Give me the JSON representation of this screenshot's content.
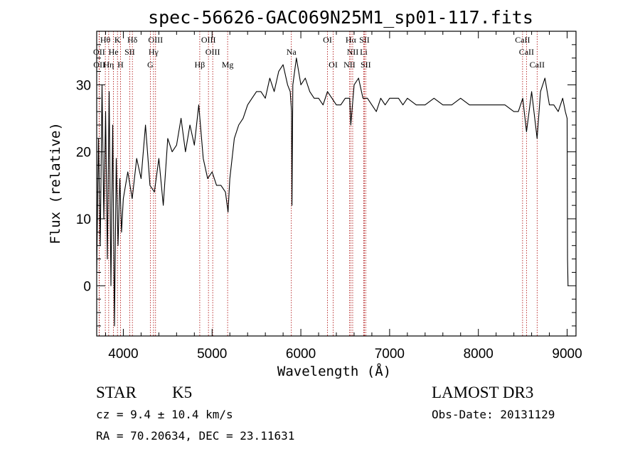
{
  "chart_data": {
    "type": "line",
    "title": "spec-56626-GAC069N25M1_sp01-117.fits",
    "xlabel": "Wavelength (Å)",
    "ylabel": "Flux (relative)",
    "xlim": [
      3700,
      9100
    ],
    "ylim": [
      -7.5,
      38
    ],
    "xticks": [
      4000,
      5000,
      6000,
      7000,
      8000,
      9000
    ],
    "yticks": [
      0,
      10,
      20,
      30
    ],
    "series": [
      {
        "x": [
          3700,
          3720,
          3740,
          3760,
          3780,
          3800,
          3820,
          3840,
          3860,
          3880,
          3900,
          3920,
          3940,
          3960,
          3980,
          4000,
          4050,
          4100,
          4150,
          4200,
          4250,
          4300,
          4350,
          4400,
          4450,
          4500,
          4550,
          4600,
          4650,
          4700,
          4750,
          4800,
          4850,
          4900,
          4950,
          5000,
          5050,
          5100,
          5150,
          5180,
          5200,
          5250,
          5300,
          5350,
          5400,
          5450,
          5500,
          5550,
          5600,
          5650,
          5700,
          5750,
          5800,
          5850,
          5880,
          5895,
          5900,
          5910,
          5950,
          6000,
          6050,
          6100,
          6150,
          6200,
          6250,
          6300,
          6350,
          6400,
          6450,
          6500,
          6550,
          6563,
          6600,
          6650,
          6700,
          6750,
          6800,
          6850,
          6900,
          6950,
          7000,
          7050,
          7100,
          7150,
          7200,
          7300,
          7400,
          7500,
          7600,
          7700,
          7800,
          7900,
          8000,
          8100,
          8200,
          8300,
          8400,
          8450,
          8500,
          8542,
          8600,
          8662,
          8700,
          8750,
          8800,
          8850,
          8900,
          8950,
          8980,
          9000,
          9005,
          9010
        ],
        "y": [
          2,
          22,
          6,
          30,
          10,
          26,
          4,
          29,
          0,
          24,
          -6,
          19,
          6,
          16,
          8,
          13,
          17,
          13,
          19,
          16,
          24,
          15,
          14,
          19,
          12,
          22,
          20,
          21,
          25,
          20,
          24,
          21,
          27,
          19,
          16,
          17,
          15,
          15,
          14,
          11,
          16,
          22,
          24,
          25,
          27,
          28,
          29,
          29,
          28,
          31,
          29,
          32,
          33,
          30,
          29,
          26,
          12,
          30,
          34,
          30,
          31,
          29,
          28,
          28,
          27,
          29,
          28,
          27,
          27,
          28,
          28,
          24,
          30,
          31,
          28,
          28,
          27,
          26,
          28,
          27,
          28,
          28,
          28,
          27,
          28,
          27,
          27,
          28,
          27,
          27,
          28,
          27,
          27,
          27,
          27,
          27,
          26,
          26,
          28,
          23,
          29,
          22,
          29,
          31,
          27,
          27,
          26,
          28,
          26,
          25,
          4,
          0
        ]
      }
    ],
    "lines": [
      {
        "label": "Hθ",
        "x": 3797,
        "row": 0
      },
      {
        "label": "K",
        "x": 3934,
        "row": 0
      },
      {
        "label": "Hδ",
        "x": 4102,
        "row": 0
      },
      {
        "label": "OIII",
        "x": 4363,
        "row": 0
      },
      {
        "label": "OIII",
        "x": 4959,
        "row": 0
      },
      {
        "label": "OI",
        "x": 6300,
        "row": 0
      },
      {
        "label": "Hα",
        "x": 6563,
        "row": 0
      },
      {
        "label": "SII",
        "x": 6716,
        "row": 0
      },
      {
        "label": "CaII",
        "x": 8498,
        "row": 0
      },
      {
        "label": "OII",
        "x": 3727,
        "row": 1
      },
      {
        "label": "He",
        "x": 3889,
        "row": 1
      },
      {
        "label": "SII",
        "x": 4072,
        "row": 1
      },
      {
        "label": "Hγ",
        "x": 4340,
        "row": 1
      },
      {
        "label": "OIII",
        "x": 5007,
        "row": 1
      },
      {
        "label": "NII",
        "x": 6584,
        "row": 1
      },
      {
        "label": "Li",
        "x": 6708,
        "row": 1
      },
      {
        "label": "Na",
        "x": 5893,
        "row": 1
      },
      {
        "label": "CaII",
        "x": 8542,
        "row": 1
      },
      {
        "label": "OII",
        "x": 3729,
        "row": 2
      },
      {
        "label": "Hη",
        "x": 3835,
        "row": 2
      },
      {
        "label": "H",
        "x": 3968,
        "row": 2
      },
      {
        "label": "G",
        "x": 4304,
        "row": 2
      },
      {
        "label": "Hβ",
        "x": 4861,
        "row": 2
      },
      {
        "label": "Mg",
        "x": 5175,
        "row": 2
      },
      {
        "label": "OI",
        "x": 6364,
        "row": 2
      },
      {
        "label": "NII",
        "x": 6548,
        "row": 2
      },
      {
        "label": "SII",
        "x": 6731,
        "row": 2
      },
      {
        "label": "CaII",
        "x": 8662,
        "row": 2
      }
    ]
  },
  "info": {
    "object_class": "STAR",
    "subclass": "K5",
    "survey": "LAMOST DR3",
    "cz": "cz = 9.4 ± 10.4 km/s",
    "obs_date": "Obs-Date: 20131129",
    "coords": "RA =  70.20634, DEC =  23.11631"
  },
  "colors": {
    "spectrum": "#000000",
    "line_marker": "#aa0000"
  }
}
